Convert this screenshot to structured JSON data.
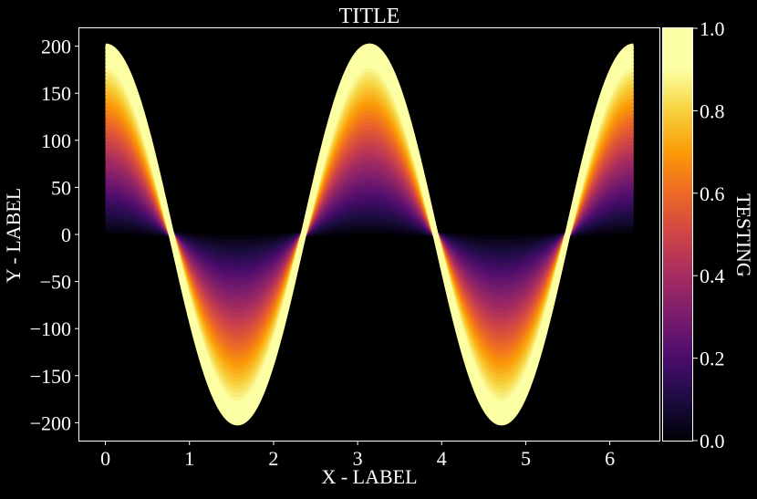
{
  "chart_data": {
    "type": "line",
    "title": "TITLE",
    "xlabel": "X - LABEL",
    "ylabel": "Y - LABEL",
    "xlim": [
      -0.31,
      6.59
    ],
    "ylim": [
      -219,
      219
    ],
    "xticks": [
      0,
      1,
      2,
      3,
      4,
      5,
      6
    ],
    "yticks": [
      -200,
      -150,
      -100,
      -50,
      0,
      50,
      100,
      150,
      200
    ],
    "ytick_labels": [
      "−200",
      "−150",
      "−100",
      "−50",
      "0",
      "50",
      "100",
      "150",
      "200"
    ],
    "x_range": [
      0,
      6.2832
    ],
    "series_function": "y = 200 * s * cos(2x), one curve per s from 0 to 1",
    "series_count": 50,
    "amplitude": 200,
    "frequency": 2,
    "colormap": "inferno",
    "colorbar": {
      "label": "TESTING",
      "range": [
        0,
        1
      ],
      "ticks": [
        0.0,
        0.2,
        0.4,
        0.6,
        0.8,
        1.0
      ],
      "tick_labels": [
        "0.0",
        "0.2",
        "0.4",
        "0.6",
        "0.8",
        "1.0"
      ]
    },
    "background": "#000000",
    "foreground": "#ffffff",
    "grid": false,
    "legend": "none"
  }
}
